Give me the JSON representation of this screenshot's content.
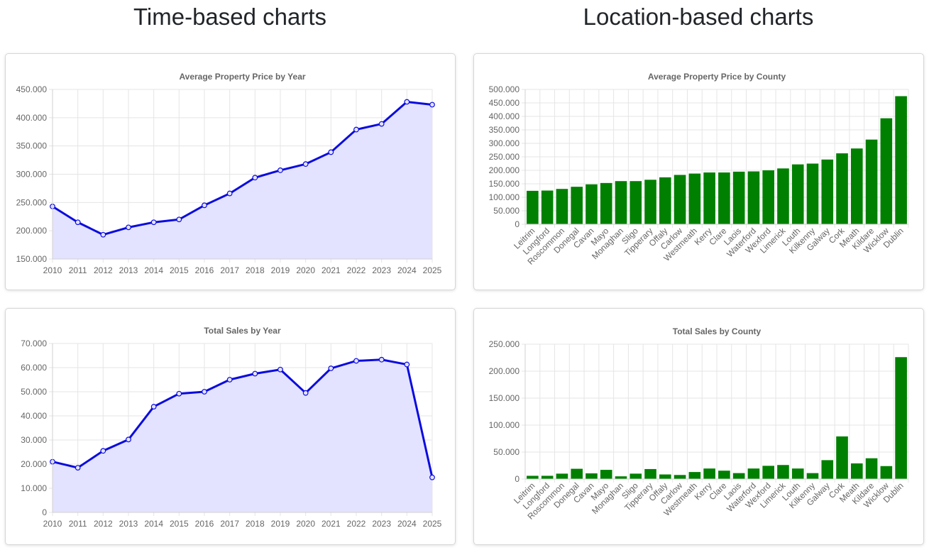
{
  "headings": {
    "time": "Time-based charts",
    "location": "Location-based charts"
  },
  "colors": {
    "line": "#0b0be0",
    "area_fill": "#e3e3ff",
    "bar": "#008000",
    "grid": "#e5e5e5",
    "text": "#666666"
  },
  "chart_data": [
    {
      "id": "price-by-year",
      "type": "line",
      "title": "Average Property Price by Year",
      "categories": [
        "2010",
        "2011",
        "2012",
        "2013",
        "2014",
        "2015",
        "2016",
        "2017",
        "2018",
        "2019",
        "2020",
        "2021",
        "2022",
        "2023",
        "2024",
        "2025"
      ],
      "values": [
        243000,
        215000,
        193000,
        206000,
        215000,
        220000,
        245000,
        266000,
        294000,
        307000,
        318000,
        339000,
        379000,
        389000,
        428000,
        423000
      ],
      "ylim": [
        150000,
        450000
      ],
      "yticks": [
        150000,
        200000,
        250000,
        300000,
        350000,
        400000,
        450000
      ],
      "ytick_labels": [
        "150.000",
        "200.000",
        "250.000",
        "300.000",
        "350.000",
        "400.000",
        "450.000"
      ],
      "filled": true,
      "grid": true,
      "legend": "none"
    },
    {
      "id": "sales-by-year",
      "type": "line",
      "title": "Total Sales by Year",
      "categories": [
        "2010",
        "2011",
        "2012",
        "2013",
        "2014",
        "2015",
        "2016",
        "2017",
        "2018",
        "2019",
        "2020",
        "2021",
        "2022",
        "2023",
        "2024",
        "2025"
      ],
      "values": [
        21000,
        18500,
        25500,
        30200,
        43800,
        49200,
        50000,
        55000,
        57500,
        59200,
        49500,
        59700,
        62800,
        63300,
        61300,
        14500
      ],
      "ylim": [
        0,
        70000
      ],
      "yticks": [
        0,
        10000,
        20000,
        30000,
        40000,
        50000,
        60000,
        70000
      ],
      "ytick_labels": [
        "0",
        "10.000",
        "20.000",
        "30.000",
        "40.000",
        "50.000",
        "60.000",
        "70.000"
      ],
      "filled": true,
      "grid": true,
      "legend": "none"
    },
    {
      "id": "price-by-county",
      "type": "bar",
      "title": "Average Property Price by County",
      "categories": [
        "Leitrim",
        "Longford",
        "Roscommon",
        "Donegal",
        "Cavan",
        "Mayo",
        "Monaghan",
        "Sligo",
        "Tipperary",
        "Offaly",
        "Carlow",
        "Westmeath",
        "Kerry",
        "Clare",
        "Laois",
        "Waterford",
        "Wexford",
        "Limerick",
        "Louth",
        "Kilkenny",
        "Galway",
        "Cork",
        "Meath",
        "Kildare",
        "Wicklow",
        "Dublin"
      ],
      "values": [
        124000,
        125000,
        131000,
        139000,
        148000,
        153000,
        160000,
        160000,
        165000,
        174000,
        183000,
        188000,
        192000,
        192000,
        195000,
        196000,
        200000,
        207000,
        222000,
        225000,
        240000,
        263000,
        281000,
        314000,
        393000,
        475000
      ],
      "ylim": [
        0,
        500000
      ],
      "yticks": [
        0,
        50000,
        100000,
        150000,
        200000,
        250000,
        300000,
        350000,
        400000,
        450000,
        500000
      ],
      "ytick_labels": [
        "0",
        "50.000",
        "100.000",
        "150.000",
        "200.000",
        "250.000",
        "300.000",
        "350.000",
        "400.000",
        "450.000",
        "500.000"
      ],
      "grid": true,
      "legend": "none"
    },
    {
      "id": "sales-by-county",
      "type": "bar",
      "title": "Total Sales by County",
      "categories": [
        "Leitrim",
        "Longford",
        "Roscommon",
        "Donegal",
        "Cavan",
        "Mayo",
        "Monaghan",
        "Sligo",
        "Tipperary",
        "Offaly",
        "Carlow",
        "Westmeath",
        "Kerry",
        "Clare",
        "Laois",
        "Waterford",
        "Wexford",
        "Limerick",
        "Louth",
        "Kilkenny",
        "Galway",
        "Cork",
        "Meath",
        "Kildare",
        "Wicklow",
        "Dublin"
      ],
      "values": [
        6000,
        6000,
        10000,
        19000,
        10500,
        17000,
        5000,
        10000,
        18500,
        8500,
        7500,
        13000,
        19500,
        15500,
        11000,
        19500,
        24500,
        26000,
        19500,
        11000,
        35000,
        79000,
        29000,
        38500,
        24000,
        226000
      ],
      "ylim": [
        0,
        250000
      ],
      "yticks": [
        0,
        50000,
        100000,
        150000,
        200000,
        250000
      ],
      "ytick_labels": [
        "0",
        "50.000",
        "100.000",
        "150.000",
        "200.000",
        "250.000"
      ],
      "grid": true,
      "legend": "none"
    }
  ]
}
